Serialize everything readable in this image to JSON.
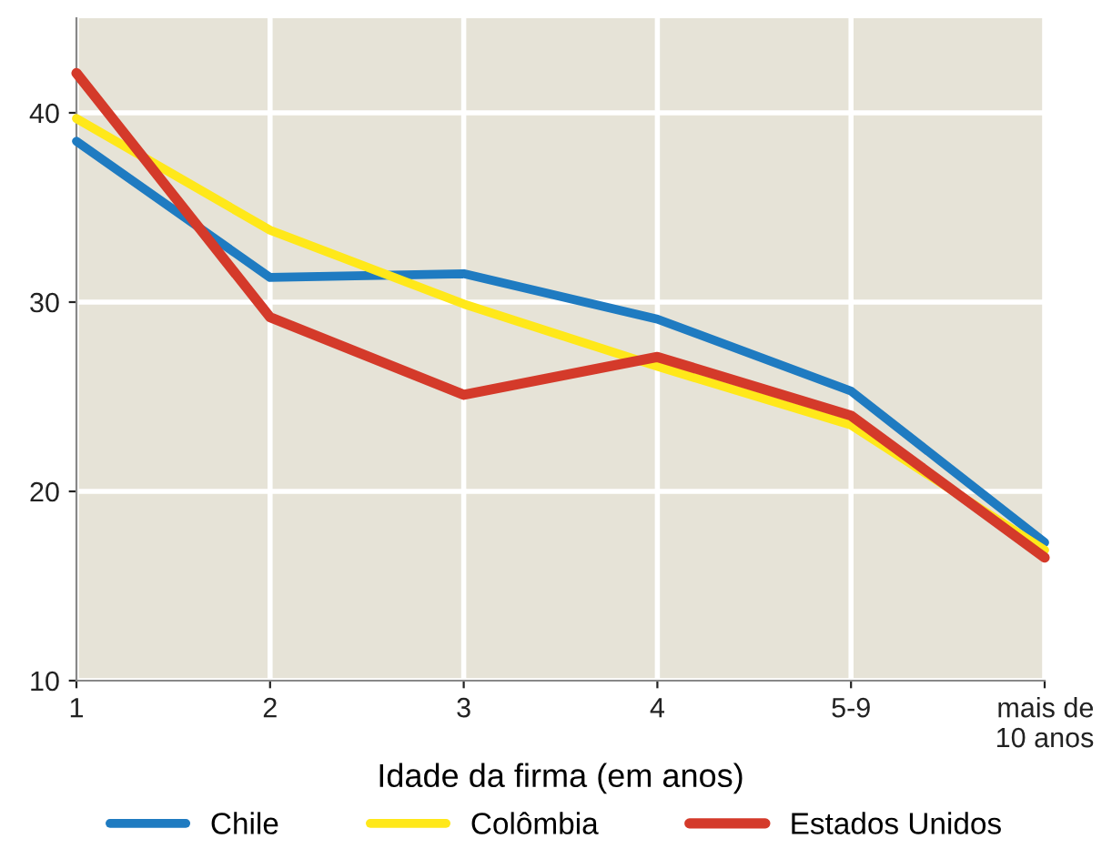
{
  "chart_data": {
    "type": "line",
    "xlabel": "Idade da firma (em anos)",
    "categories": [
      "1",
      "2",
      "3",
      "4",
      "5-9",
      "mais de\n10 anos"
    ],
    "series": [
      {
        "name": "Chile",
        "color": "#1f7bc1",
        "values": [
          38.5,
          31.3,
          31.5,
          29.1,
          25.3,
          17.3
        ]
      },
      {
        "name": "Colômbia",
        "color": "#ffe81a",
        "values": [
          39.7,
          33.8,
          29.9,
          26.6,
          23.5,
          16.9
        ]
      },
      {
        "name": "Estados Unidos",
        "color": "#d43a2a",
        "values": [
          42.1,
          29.2,
          25.1,
          27.1,
          24.0,
          16.5
        ]
      }
    ],
    "ylim": [
      10,
      45
    ],
    "yticks": [
      10,
      20,
      30,
      40
    ],
    "grid": true,
    "legend": "bottom",
    "marker": "none",
    "line_style": "solid"
  }
}
